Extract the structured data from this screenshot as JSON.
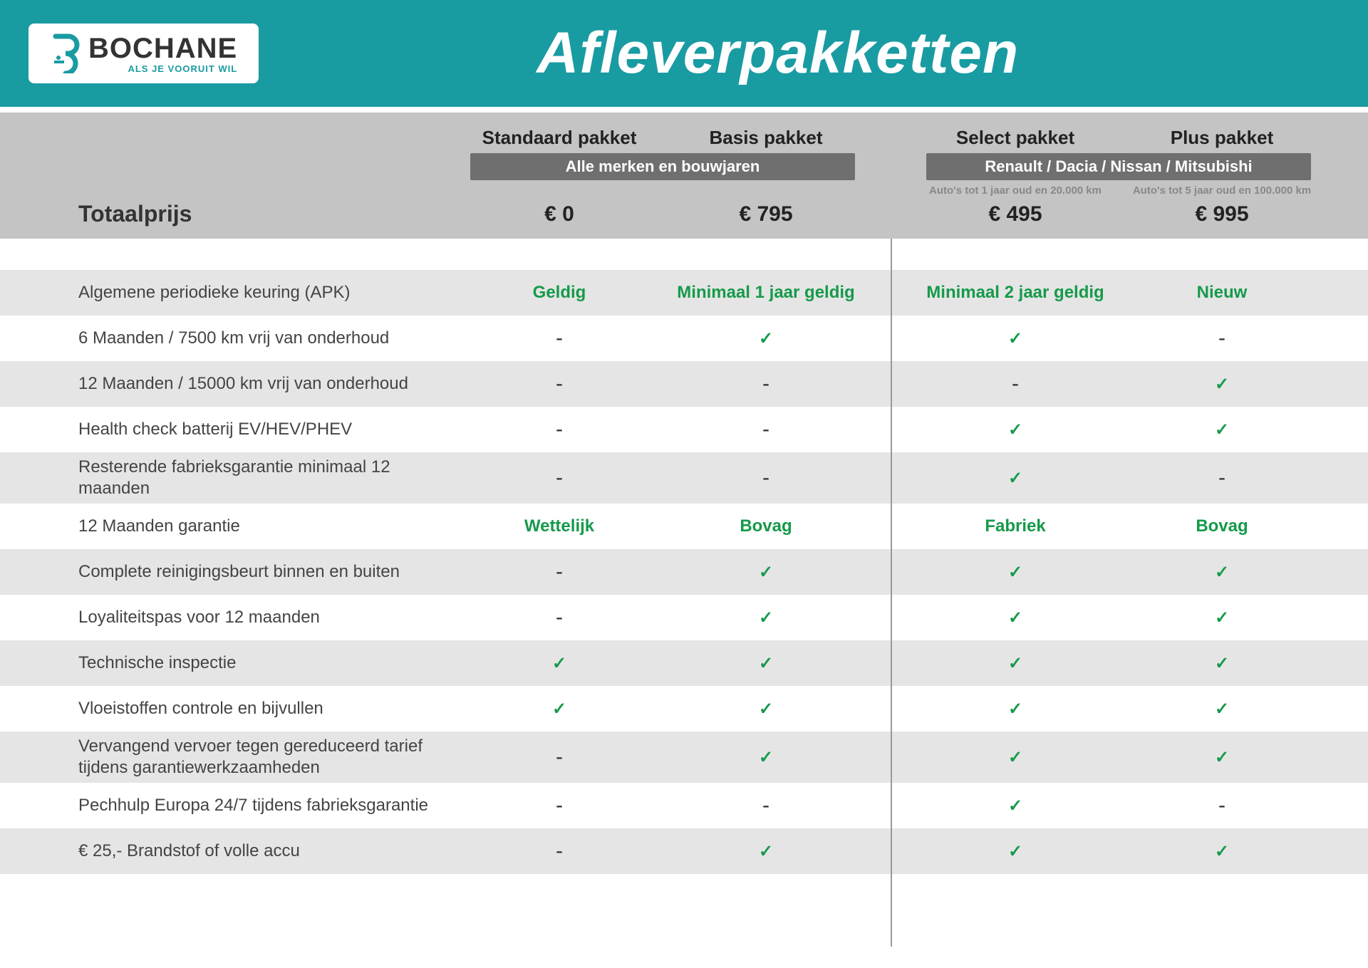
{
  "brand": {
    "name": "BOCHANE",
    "tagline": "ALS JE VOORUIT WIL"
  },
  "page_title": "Afleverpakketten",
  "colors": {
    "header_bg": "#199ba2",
    "pill_bg": "#6f6f6f",
    "colhead_bg": "#c4c4c4",
    "row_alt_bg": "#e5e5e5",
    "accent_green": "#159a4a"
  },
  "totals_label": "Totaalprijs",
  "packages": [
    {
      "key": "standard",
      "name": "Standaard pakket",
      "price": "€ 0",
      "group": 0,
      "note": ""
    },
    {
      "key": "basis",
      "name": "Basis pakket",
      "price": "€ 795",
      "group": 0,
      "note": ""
    },
    {
      "key": "select",
      "name": "Select pakket",
      "price": "€ 495",
      "group": 1,
      "note": "Auto's tot 1 jaar oud en 20.000 km"
    },
    {
      "key": "plus",
      "name": "Plus pakket",
      "price": "€ 995",
      "group": 1,
      "note": "Auto's tot 5 jaar oud en 100.000 km"
    }
  ],
  "groups": [
    {
      "label": "Alle merken en bouwjaren"
    },
    {
      "label": "Renault / Dacia / Nissan / Mitsubishi"
    }
  ],
  "features": [
    {
      "label": "Algemene periodieke keuring (APK)",
      "alt": true,
      "vals": [
        {
          "t": "text",
          "v": "Geldig"
        },
        {
          "t": "text",
          "v": "Minimaal 1 jaar geldig"
        },
        {
          "t": "text",
          "v": "Minimaal 2 jaar geldig"
        },
        {
          "t": "text",
          "v": "Nieuw"
        }
      ]
    },
    {
      "label": "6 Maanden / 7500 km vrij van onderhoud",
      "alt": false,
      "vals": [
        {
          "t": "dash"
        },
        {
          "t": "check"
        },
        {
          "t": "check"
        },
        {
          "t": "dash"
        }
      ]
    },
    {
      "label": "12 Maanden / 15000 km vrij van onderhoud",
      "alt": true,
      "vals": [
        {
          "t": "dash"
        },
        {
          "t": "dash"
        },
        {
          "t": "dash"
        },
        {
          "t": "check"
        }
      ]
    },
    {
      "label": "Health check batterij EV/HEV/PHEV",
      "alt": false,
      "vals": [
        {
          "t": "dash"
        },
        {
          "t": "dash"
        },
        {
          "t": "check"
        },
        {
          "t": "check"
        }
      ]
    },
    {
      "label": "Resterende fabrieksgarantie minimaal 12 maanden",
      "alt": true,
      "vals": [
        {
          "t": "dash"
        },
        {
          "t": "dash"
        },
        {
          "t": "check"
        },
        {
          "t": "dash"
        }
      ]
    },
    {
      "label": "12 Maanden  garantie",
      "alt": false,
      "vals": [
        {
          "t": "text",
          "v": "Wettelijk"
        },
        {
          "t": "text",
          "v": "Bovag"
        },
        {
          "t": "text",
          "v": "Fabriek"
        },
        {
          "t": "text",
          "v": "Bovag"
        }
      ]
    },
    {
      "label": "Complete reinigingsbeurt binnen en buiten",
      "alt": true,
      "vals": [
        {
          "t": "dash"
        },
        {
          "t": "check"
        },
        {
          "t": "check"
        },
        {
          "t": "check"
        }
      ]
    },
    {
      "label": "Loyaliteitspas voor 12 maanden",
      "alt": false,
      "vals": [
        {
          "t": "dash"
        },
        {
          "t": "check"
        },
        {
          "t": "check"
        },
        {
          "t": "check"
        }
      ]
    },
    {
      "label": "Technische inspectie",
      "alt": true,
      "vals": [
        {
          "t": "check"
        },
        {
          "t": "check"
        },
        {
          "t": "check"
        },
        {
          "t": "check"
        }
      ]
    },
    {
      "label": "Vloeistoffen controle en bijvullen",
      "alt": false,
      "vals": [
        {
          "t": "check"
        },
        {
          "t": "check"
        },
        {
          "t": "check"
        },
        {
          "t": "check"
        }
      ]
    },
    {
      "label": "Vervangend vervoer tegen gereduceerd tarief tijdens garantiewerkzaamheden",
      "alt": true,
      "vals": [
        {
          "t": "dash"
        },
        {
          "t": "check"
        },
        {
          "t": "check"
        },
        {
          "t": "check"
        }
      ]
    },
    {
      "label": "Pechhulp Europa 24/7 tijdens fabrieksgarantie",
      "alt": false,
      "vals": [
        {
          "t": "dash"
        },
        {
          "t": "dash"
        },
        {
          "t": "check"
        },
        {
          "t": "dash"
        }
      ]
    },
    {
      "label": "€ 25,- Brandstof of  volle accu",
      "alt": true,
      "vals": [
        {
          "t": "dash"
        },
        {
          "t": "check"
        },
        {
          "t": "check"
        },
        {
          "t": "check"
        }
      ]
    }
  ]
}
